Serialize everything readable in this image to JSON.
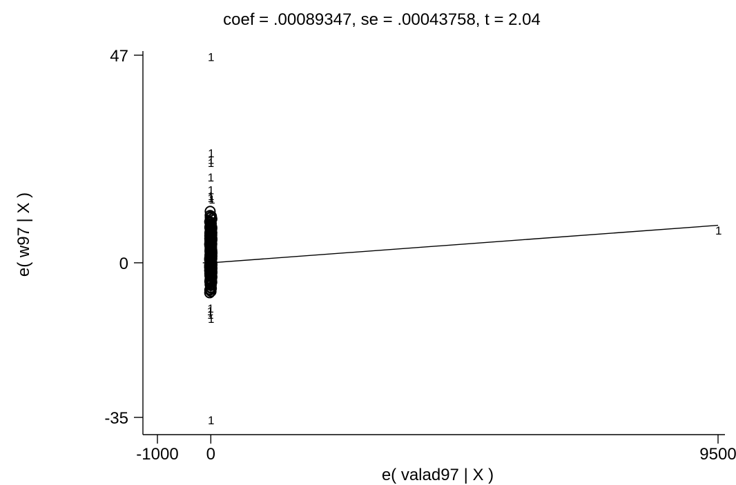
{
  "chart_data": {
    "type": "scatter",
    "title": "coef = .00089347, se = .00043758, t = 2.04",
    "xlabel": "e( valad97 | X )",
    "ylabel": "e( w97 | X )",
    "xlim": [
      -1000,
      9500
    ],
    "ylim": [
      -35,
      47
    ],
    "xticks": [
      {
        "value": -1000,
        "label": "-1000"
      },
      {
        "value": 0,
        "label": "0"
      },
      {
        "value": 9500,
        "label": "9500"
      }
    ],
    "yticks": [
      {
        "value": 47,
        "label": "47"
      },
      {
        "value": 0,
        "label": "0"
      },
      {
        "value": -35,
        "label": "-35"
      }
    ],
    "grid": false,
    "legend": "none",
    "marker_label": "1",
    "labeled_points": [
      {
        "x": -5,
        "y": 46.8
      },
      {
        "x": -3,
        "y": 25
      },
      {
        "x": -6,
        "y": 23.5
      },
      {
        "x": -8,
        "y": 22.8
      },
      {
        "x": -9,
        "y": 19.5
      },
      {
        "x": -7,
        "y": 16.6
      },
      {
        "x": -4,
        "y": 15.3
      },
      {
        "x": -10,
        "y": 14.8
      },
      {
        "x": 12,
        "y": 14.5
      },
      {
        "x": -12,
        "y": -10.2
      },
      {
        "x": -20,
        "y": -10.8
      },
      {
        "x": -15,
        "y": -11.6
      },
      {
        "x": -5,
        "y": -12.5
      },
      {
        "x": -5,
        "y": -35.5
      },
      {
        "x": 9500,
        "y": 7.5
      }
    ],
    "dense_cluster": {
      "x_min": -22,
      "x_max": 22,
      "y_min": -9,
      "y_max": 14,
      "count": 260
    },
    "fit_line": {
      "x": [
        -1000,
        9500
      ],
      "slope": 0.00089347
    },
    "colors": {
      "marker": "#000000",
      "line": "#000000",
      "axis": "#000000",
      "background": "#ffffff"
    }
  }
}
